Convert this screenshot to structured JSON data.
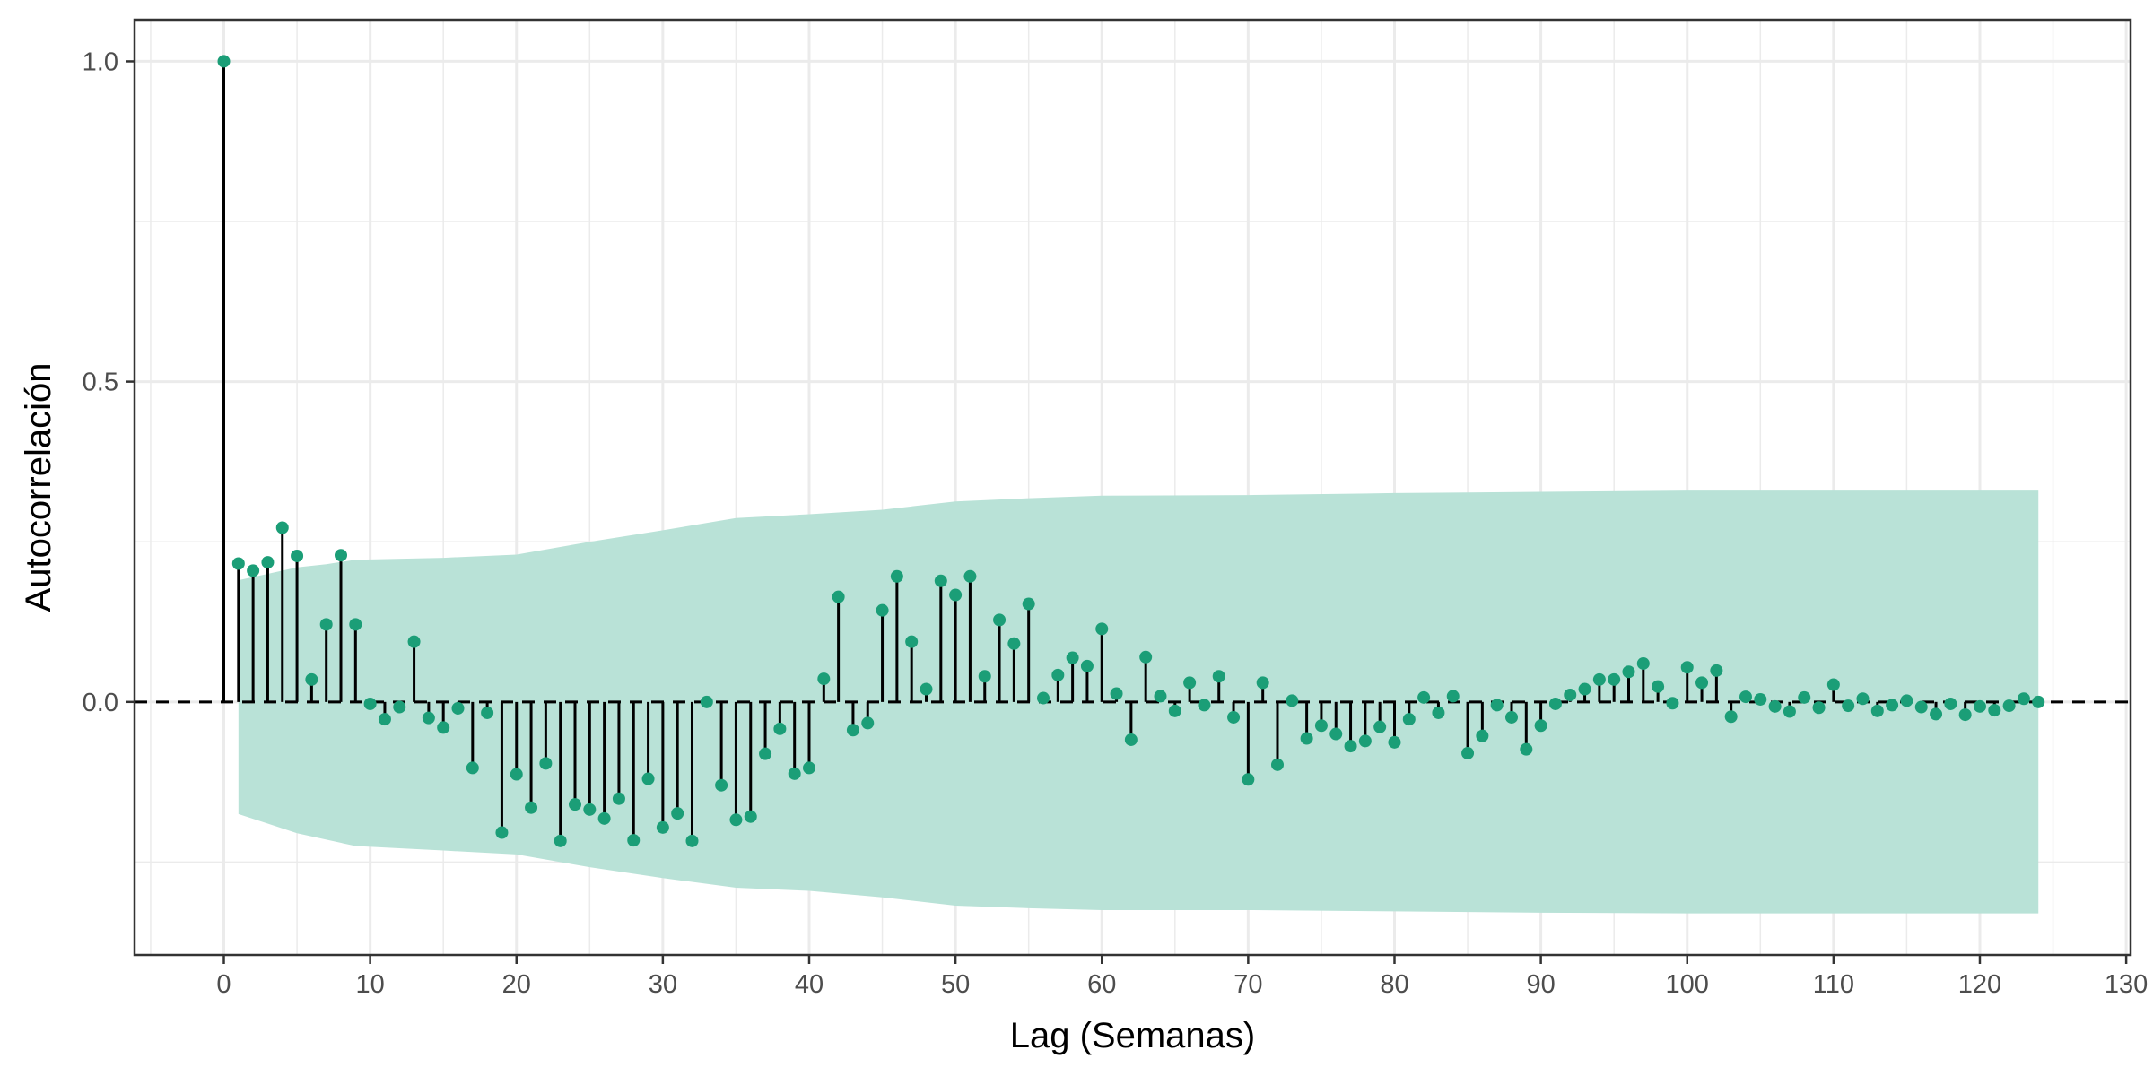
{
  "chart_data": {
    "type": "stem",
    "title": "",
    "xlabel": "Lag (Semanas)",
    "ylabel": "Autocorrelación",
    "xlim": [
      -6.1,
      130.3
    ],
    "ylim": [
      -0.395,
      1.065
    ],
    "x_ticks": [
      0,
      10,
      20,
      30,
      40,
      50,
      60,
      70,
      80,
      90,
      100,
      110,
      120,
      130
    ],
    "x_tick_labels": [
      "0",
      "10",
      "20",
      "30",
      "40",
      "50",
      "60",
      "70",
      "80",
      "90",
      "100",
      "110",
      "120",
      "130"
    ],
    "y_ticks": [
      0.0,
      0.5,
      1.0
    ],
    "y_tick_labels": [
      "0.0",
      "0.5",
      "1.0"
    ],
    "grid": true,
    "legend": "none",
    "colors": {
      "points": "#1b9e77",
      "band": "#b9e2d7",
      "stems": "#000000",
      "zero_line": "#000000",
      "grid": "#ebebeb",
      "panel_border": "#333333"
    },
    "zero_line_style": "dashed",
    "series": [
      {
        "lags": [
          0,
          1,
          2,
          3,
          4,
          5,
          6,
          7,
          8,
          9,
          10,
          11,
          12,
          13,
          14,
          15,
          16,
          17,
          18,
          19,
          20,
          21,
          22,
          23,
          24,
          25,
          26,
          27,
          28,
          29,
          30,
          31,
          32,
          33,
          34,
          35,
          36,
          37,
          38,
          39,
          40,
          41,
          42,
          43,
          44,
          45,
          46,
          47,
          48,
          49,
          50,
          51,
          52,
          53,
          54,
          55,
          56,
          57,
          58,
          59,
          60,
          61,
          62,
          63,
          64,
          65,
          66,
          67,
          68,
          69,
          70,
          71,
          72,
          73,
          74,
          75,
          76,
          77,
          78,
          79,
          80,
          81,
          82,
          83,
          84,
          85,
          86,
          87,
          88,
          89,
          90,
          91,
          92,
          93,
          94,
          95,
          96,
          97,
          98,
          99,
          100,
          101,
          102,
          103,
          104,
          105,
          106,
          107,
          108,
          109,
          110,
          111,
          112,
          113,
          114,
          115,
          116,
          117,
          118,
          119,
          120,
          121,
          122,
          123,
          124
        ],
        "acf": [
          1.0,
          0.216,
          0.205,
          0.218,
          0.272,
          0.228,
          0.035,
          0.121,
          0.229,
          0.121,
          -0.003,
          -0.027,
          -0.008,
          0.094,
          -0.025,
          -0.04,
          -0.01,
          -0.103,
          -0.017,
          -0.204,
          -0.113,
          -0.165,
          -0.096,
          -0.217,
          -0.16,
          -0.168,
          -0.182,
          -0.151,
          -0.216,
          -0.12,
          -0.196,
          -0.174,
          -0.217,
          0.0,
          -0.13,
          -0.184,
          -0.179,
          -0.081,
          -0.042,
          -0.112,
          -0.103,
          0.036,
          0.164,
          -0.044,
          -0.033,
          0.143,
          0.196,
          0.094,
          0.02,
          0.189,
          0.167,
          0.196,
          0.04,
          0.128,
          0.091,
          0.153,
          0.006,
          0.042,
          0.069,
          0.056,
          0.114,
          0.013,
          -0.059,
          0.07,
          0.009,
          -0.014,
          0.03,
          -0.005,
          0.04,
          -0.024,
          -0.121,
          0.03,
          -0.098,
          0.002,
          -0.057,
          -0.037,
          -0.05,
          -0.069,
          -0.061,
          -0.039,
          -0.063,
          -0.027,
          0.007,
          -0.017,
          0.009,
          -0.08,
          -0.053,
          -0.005,
          -0.024,
          -0.074,
          -0.037,
          -0.003,
          0.011,
          0.02,
          0.035,
          0.035,
          0.047,
          0.06,
          0.024,
          -0.002,
          0.054,
          0.03,
          0.049,
          -0.023,
          0.008,
          0.004,
          -0.007,
          -0.015,
          0.007,
          -0.009,
          0.027,
          -0.006,
          0.005,
          -0.014,
          -0.005,
          0.002,
          -0.008,
          -0.019,
          -0.003,
          -0.02,
          -0.007,
          -0.013,
          -0.006,
          0.005,
          0.0
        ]
      }
    ],
    "confidence_band": {
      "lags": [
        1,
        3,
        5,
        7,
        9,
        15,
        20,
        25,
        30,
        35,
        40,
        45,
        50,
        55,
        60,
        70,
        80,
        90,
        100,
        124
      ],
      "upper": [
        0.19,
        0.2,
        0.21,
        0.215,
        0.222,
        0.225,
        0.23,
        0.25,
        0.268,
        0.287,
        0.293,
        0.3,
        0.313,
        0.318,
        0.322,
        0.323,
        0.326,
        0.328,
        0.33,
        0.33
      ],
      "lower": [
        -0.175,
        -0.19,
        -0.205,
        -0.215,
        -0.225,
        -0.232,
        -0.238,
        -0.258,
        -0.275,
        -0.29,
        -0.295,
        -0.305,
        -0.318,
        -0.322,
        -0.325,
        -0.325,
        -0.327,
        -0.329,
        -0.33,
        -0.33
      ]
    }
  }
}
